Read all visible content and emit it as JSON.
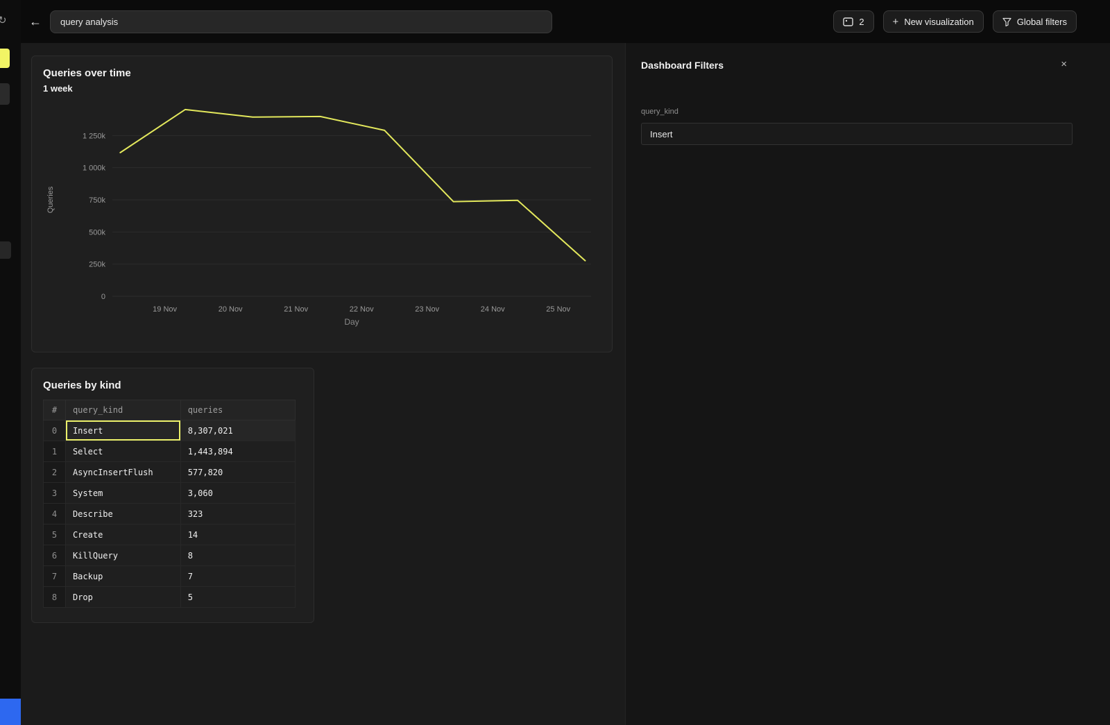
{
  "icons": {
    "back": "←",
    "refresh": "↻",
    "plus": "+",
    "close": "×"
  },
  "topbar": {
    "title_value": "query analysis",
    "viz_count": "2",
    "new_visualization_label": "New visualization",
    "global_filters_label": "Global filters"
  },
  "chart_card": {
    "title": "Queries over time",
    "subtitle": "1 week"
  },
  "chart_data": {
    "type": "line",
    "title": "Queries over time",
    "subtitle": "1 week",
    "xlabel": "Day",
    "ylabel": "Queries",
    "line_color": "#e3e85c",
    "grid": true,
    "x_domain": [
      18.2,
      25.5
    ],
    "y_domain": [
      0,
      1500000
    ],
    "x_ticks": [
      {
        "day": 19,
        "label": "19 Nov"
      },
      {
        "day": 20,
        "label": "20 Nov"
      },
      {
        "day": 21,
        "label": "21 Nov"
      },
      {
        "day": 22,
        "label": "22 Nov"
      },
      {
        "day": 23,
        "label": "23 Nov"
      },
      {
        "day": 24,
        "label": "24 Nov"
      },
      {
        "day": 25,
        "label": "25 Nov"
      }
    ],
    "y_ticks": [
      {
        "value": 0,
        "label": "0"
      },
      {
        "value": 250000,
        "label": "250k"
      },
      {
        "value": 500000,
        "label": "500k"
      },
      {
        "value": 750000,
        "label": "750k"
      },
      {
        "value": 1000000,
        "label": "1 000k"
      },
      {
        "value": 1250000,
        "label": "1 250k"
      }
    ],
    "series": [
      {
        "name": "Queries",
        "points": [
          {
            "x": 18.32,
            "y": 1117000
          },
          {
            "x": 19.31,
            "y": 1452000
          },
          {
            "x": 20.34,
            "y": 1393000
          },
          {
            "x": 21.37,
            "y": 1398000
          },
          {
            "x": 22.35,
            "y": 1290000
          },
          {
            "x": 23.4,
            "y": 736000
          },
          {
            "x": 24.38,
            "y": 746000
          },
          {
            "x": 25.41,
            "y": 277000
          }
        ]
      }
    ]
  },
  "table_card": {
    "title": "Queries by kind",
    "columns": [
      "#",
      "query_kind",
      "queries"
    ],
    "highlight": {
      "row_index": 0,
      "column": "query_kind"
    },
    "rows": [
      {
        "index": "0",
        "query_kind": "Insert",
        "queries": "8,307,021"
      },
      {
        "index": "1",
        "query_kind": "Select",
        "queries": "1,443,894"
      },
      {
        "index": "2",
        "query_kind": "AsyncInsertFlush",
        "queries": "577,820"
      },
      {
        "index": "3",
        "query_kind": "System",
        "queries": "3,060"
      },
      {
        "index": "4",
        "query_kind": "Describe",
        "queries": "323"
      },
      {
        "index": "5",
        "query_kind": "Create",
        "queries": "14"
      },
      {
        "index": "6",
        "query_kind": "KillQuery",
        "queries": "8"
      },
      {
        "index": "7",
        "query_kind": "Backup",
        "queries": "7"
      },
      {
        "index": "8",
        "query_kind": "Drop",
        "queries": "5"
      }
    ]
  },
  "filters_panel": {
    "title": "Dashboard Filters",
    "field_label": "query_kind",
    "field_value": "Insert"
  },
  "colors": {
    "accent_yellow": "#f2f465",
    "accent_blue": "#2d68f0",
    "line": "#e3e85c"
  }
}
